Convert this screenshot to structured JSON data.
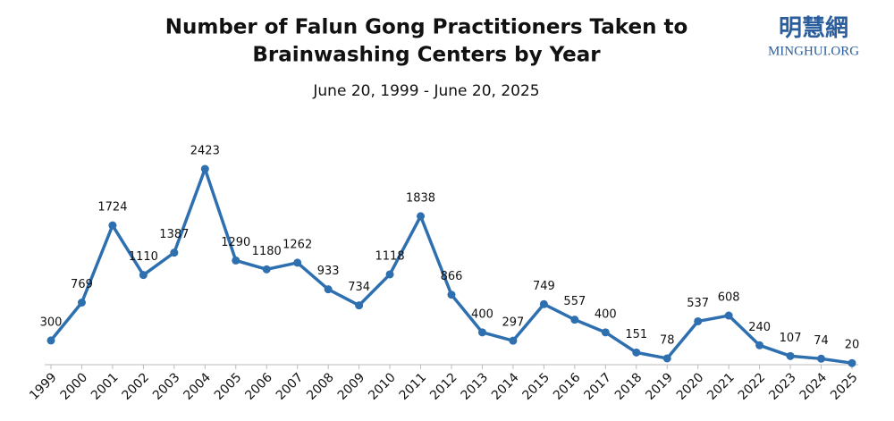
{
  "logo": {
    "name": "明慧網",
    "site": "MINGHUI.ORG"
  },
  "chart_data": {
    "type": "line",
    "title": [
      "Number of Falun Gong Practitioners Taken to",
      "Brainwashing Centers by Year"
    ],
    "subtitle": "June 20, 1999 - June 20, 2025",
    "categories": [
      "1999",
      "2000",
      "2001",
      "2002",
      "2003",
      "2004",
      "2005",
      "2006",
      "2007",
      "2008",
      "2009",
      "2010",
      "2011",
      "2012",
      "2013",
      "2014",
      "2015",
      "2016",
      "2017",
      "2018",
      "2019",
      "2020",
      "2021",
      "2022",
      "2023",
      "2024",
      "2025"
    ],
    "values": [
      300,
      769,
      1724,
      1110,
      1387,
      2423,
      1290,
      1180,
      1262,
      933,
      734,
      1118,
      1838,
      866,
      400,
      297,
      749,
      557,
      400,
      151,
      78,
      537,
      608,
      240,
      107,
      74,
      20
    ],
    "color": "#2e6fb0"
  }
}
